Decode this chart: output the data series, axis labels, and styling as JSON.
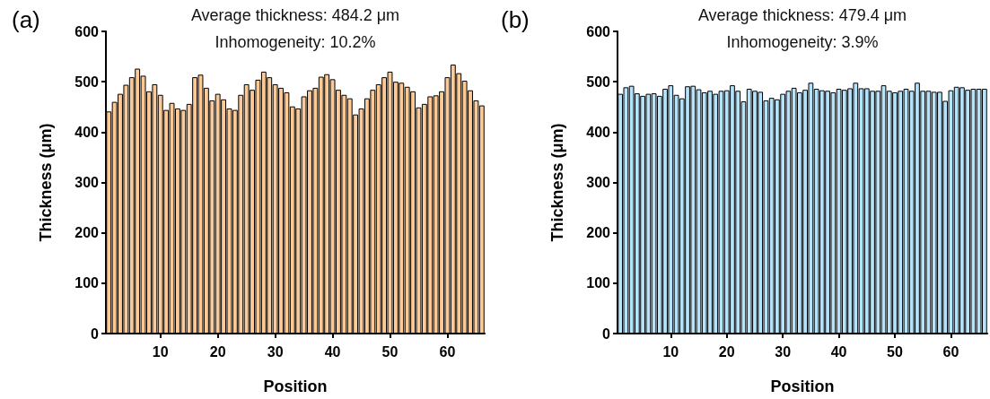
{
  "chart_data": [
    {
      "type": "bar",
      "title": "(a)",
      "xlabel": "Position",
      "ylabel": "Thickness (μm)",
      "annotations": [
        "Average thickness: 484.2 μm",
        "Inhomogeneity: 10.2%"
      ],
      "categories": [
        null,
        null,
        null,
        null,
        null,
        null,
        null,
        null,
        null,
        "10",
        null,
        null,
        null,
        null,
        null,
        null,
        null,
        null,
        null,
        "20",
        null,
        null,
        null,
        null,
        null,
        null,
        null,
        null,
        null,
        "30",
        null,
        null,
        null,
        null,
        null,
        null,
        null,
        null,
        null,
        "40",
        null,
        null,
        null,
        null,
        null,
        null,
        null,
        null,
        null,
        "50",
        null,
        null,
        null,
        null,
        null,
        null,
        null,
        null,
        null,
        "60",
        null,
        null,
        null,
        null,
        null,
        null
      ],
      "values": [
        441,
        460,
        476,
        494,
        509,
        526,
        512,
        481,
        495,
        474,
        444,
        458,
        447,
        444,
        456,
        509,
        514,
        488,
        463,
        476,
        465,
        447,
        444,
        474,
        495,
        484,
        504,
        520,
        509,
        495,
        488,
        479,
        451,
        447,
        471,
        483,
        488,
        510,
        515,
        505,
        484,
        474,
        467,
        435,
        447,
        467,
        484,
        495,
        509,
        520,
        500,
        498,
        490,
        481,
        449,
        456,
        471,
        473,
        481,
        509,
        534,
        517,
        502,
        483,
        463,
        453
      ],
      "color": "#fdc994",
      "ylim": [
        0,
        600
      ],
      "yticks": [
        0,
        100,
        200,
        300,
        400,
        500,
        600
      ]
    },
    {
      "type": "bar",
      "title": "(b)",
      "xlabel": "Position",
      "ylabel": "Thickness (μm)",
      "annotations": [
        "Average thickness: 479.4 μm",
        "Inhomogeneity: 3.9%"
      ],
      "categories": [
        null,
        null,
        null,
        null,
        null,
        null,
        null,
        null,
        null,
        "10",
        null,
        null,
        null,
        null,
        null,
        null,
        null,
        null,
        null,
        "20",
        null,
        null,
        null,
        null,
        null,
        null,
        null,
        null,
        null,
        "30",
        null,
        null,
        null,
        null,
        null,
        null,
        null,
        null,
        null,
        "40",
        null,
        null,
        null,
        null,
        null,
        null,
        null,
        null,
        null,
        "50",
        null,
        null,
        null,
        null,
        null,
        null,
        null,
        null,
        null,
        "60",
        null,
        null,
        null,
        null,
        null,
        null
      ],
      "values": [
        476,
        489,
        492,
        477,
        472,
        476,
        477,
        472,
        486,
        493,
        474,
        467,
        491,
        492,
        485,
        479,
        482,
        476,
        482,
        483,
        493,
        482,
        461,
        486,
        482,
        480,
        463,
        468,
        465,
        476,
        482,
        488,
        479,
        484,
        498,
        486,
        483,
        482,
        479,
        486,
        484,
        487,
        498,
        487,
        487,
        482,
        482,
        493,
        482,
        479,
        482,
        486,
        482,
        498,
        482,
        482,
        480,
        480,
        462,
        483,
        490,
        489,
        484,
        486,
        486,
        486
      ],
      "color": "#b5e3fb",
      "ylim": [
        0,
        600
      ],
      "yticks": [
        0,
        100,
        200,
        300,
        400,
        500,
        600
      ]
    }
  ]
}
